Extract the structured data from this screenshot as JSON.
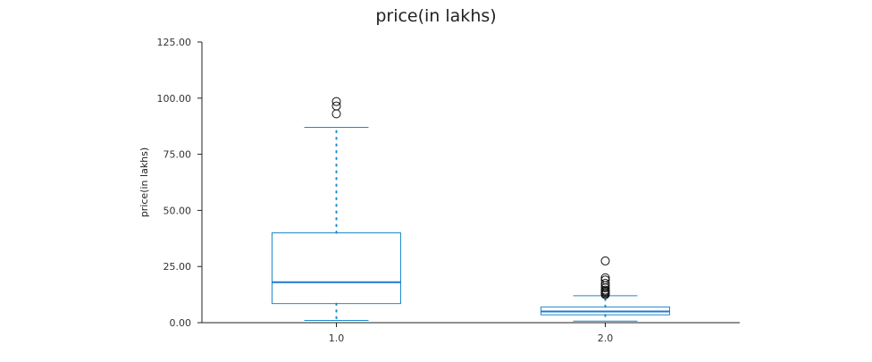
{
  "chart_data": {
    "type": "box",
    "title": "price(in lakhs)",
    "xlabel": "",
    "ylabel": "price(in lakhs)",
    "ylim": [
      0,
      125
    ],
    "yticks": [
      0,
      25,
      50,
      75,
      100,
      125
    ],
    "ytick_labels": [
      "0.00",
      "25.00",
      "50.00",
      "75.00",
      "100.00",
      "125.00"
    ],
    "categories": [
      "1.0",
      "2.0"
    ],
    "boxes": [
      {
        "category": "1.0",
        "whisker_low": 1.0,
        "q1": 8.5,
        "median": 18.0,
        "q3": 40.0,
        "whisker_high": 87.0,
        "outliers": [
          93.0,
          96.5,
          98.5
        ]
      },
      {
        "category": "2.0",
        "whisker_low": 0.7,
        "q1": 3.5,
        "median": 5.0,
        "q3": 7.0,
        "whisker_high": 12.0,
        "outliers": [
          12.5,
          13.0,
          13.5,
          14.0,
          14.5,
          15.5,
          16.5,
          17.5,
          19.0,
          20.0,
          27.5
        ]
      }
    ],
    "grid": false,
    "legend": "none",
    "colors": {
      "box": "#1f8ac9",
      "median": "#1f78d1",
      "whisker": "#1f8ac9",
      "outlier": "#111111",
      "axis": "#222222"
    }
  }
}
